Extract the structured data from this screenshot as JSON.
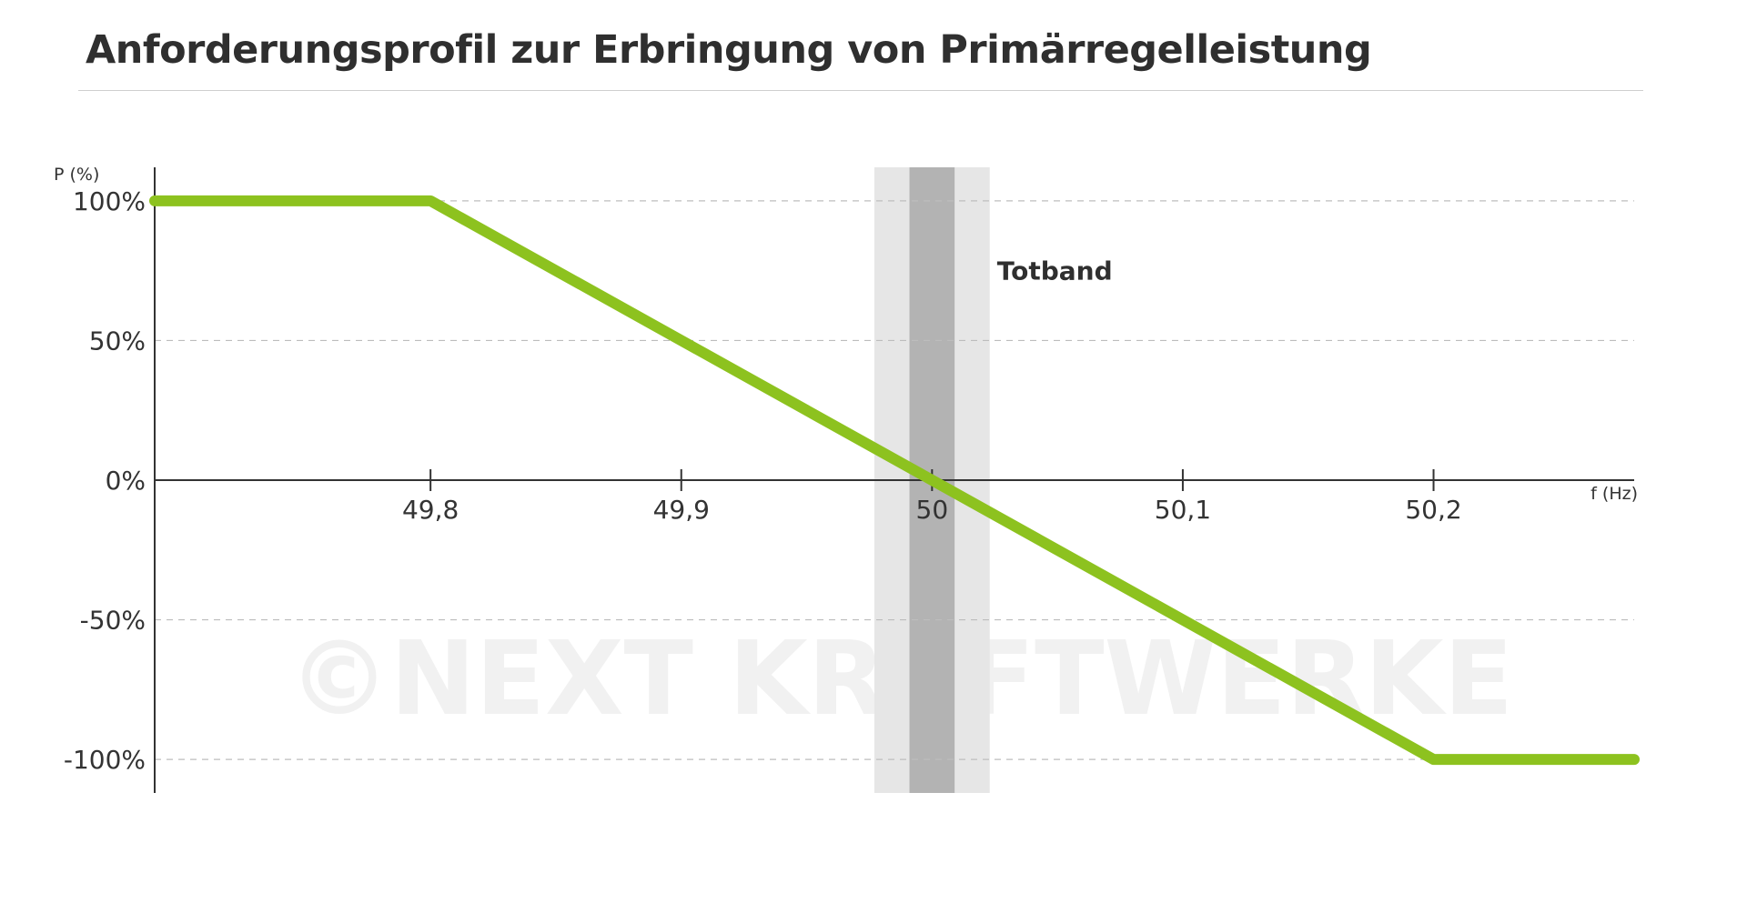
{
  "title": "Anforderungsprofil zur Erbringung von Primärregelleistung",
  "watermark": "©NEXT KRAFTWERKE",
  "colors": {
    "line": "#8dc21f",
    "axis": "#333333",
    "grid": "#bdbdbd",
    "deadband_outer": "#e6e6e6",
    "deadband_inner": "#b3b3b3"
  },
  "chart_data": {
    "type": "line",
    "xlabel": "f (Hz)",
    "ylabel": "P (%)",
    "xlim": [
      49.69,
      50.28
    ],
    "ylim": [
      -112,
      112
    ],
    "x_ticks": [
      49.8,
      49.9,
      50,
      50.1,
      50.2
    ],
    "x_tick_labels": [
      "49,8",
      "49,9",
      "50",
      "50,1",
      "50,2"
    ],
    "y_ticks": [
      100,
      50,
      0,
      -50,
      -100
    ],
    "y_tick_labels": [
      "100%",
      "50%",
      "0%",
      "-50%",
      "-100%"
    ],
    "grid": "horizontal dashed",
    "series": [
      {
        "x": [
          49.69,
          49.8,
          50.2,
          50.28
        ],
        "y": [
          100,
          100,
          -100,
          -100
        ]
      }
    ],
    "annotations": [
      {
        "type": "band",
        "label": "Totband",
        "outer": [
          49.977,
          50.023
        ],
        "inner": [
          49.991,
          50.009
        ]
      }
    ]
  }
}
